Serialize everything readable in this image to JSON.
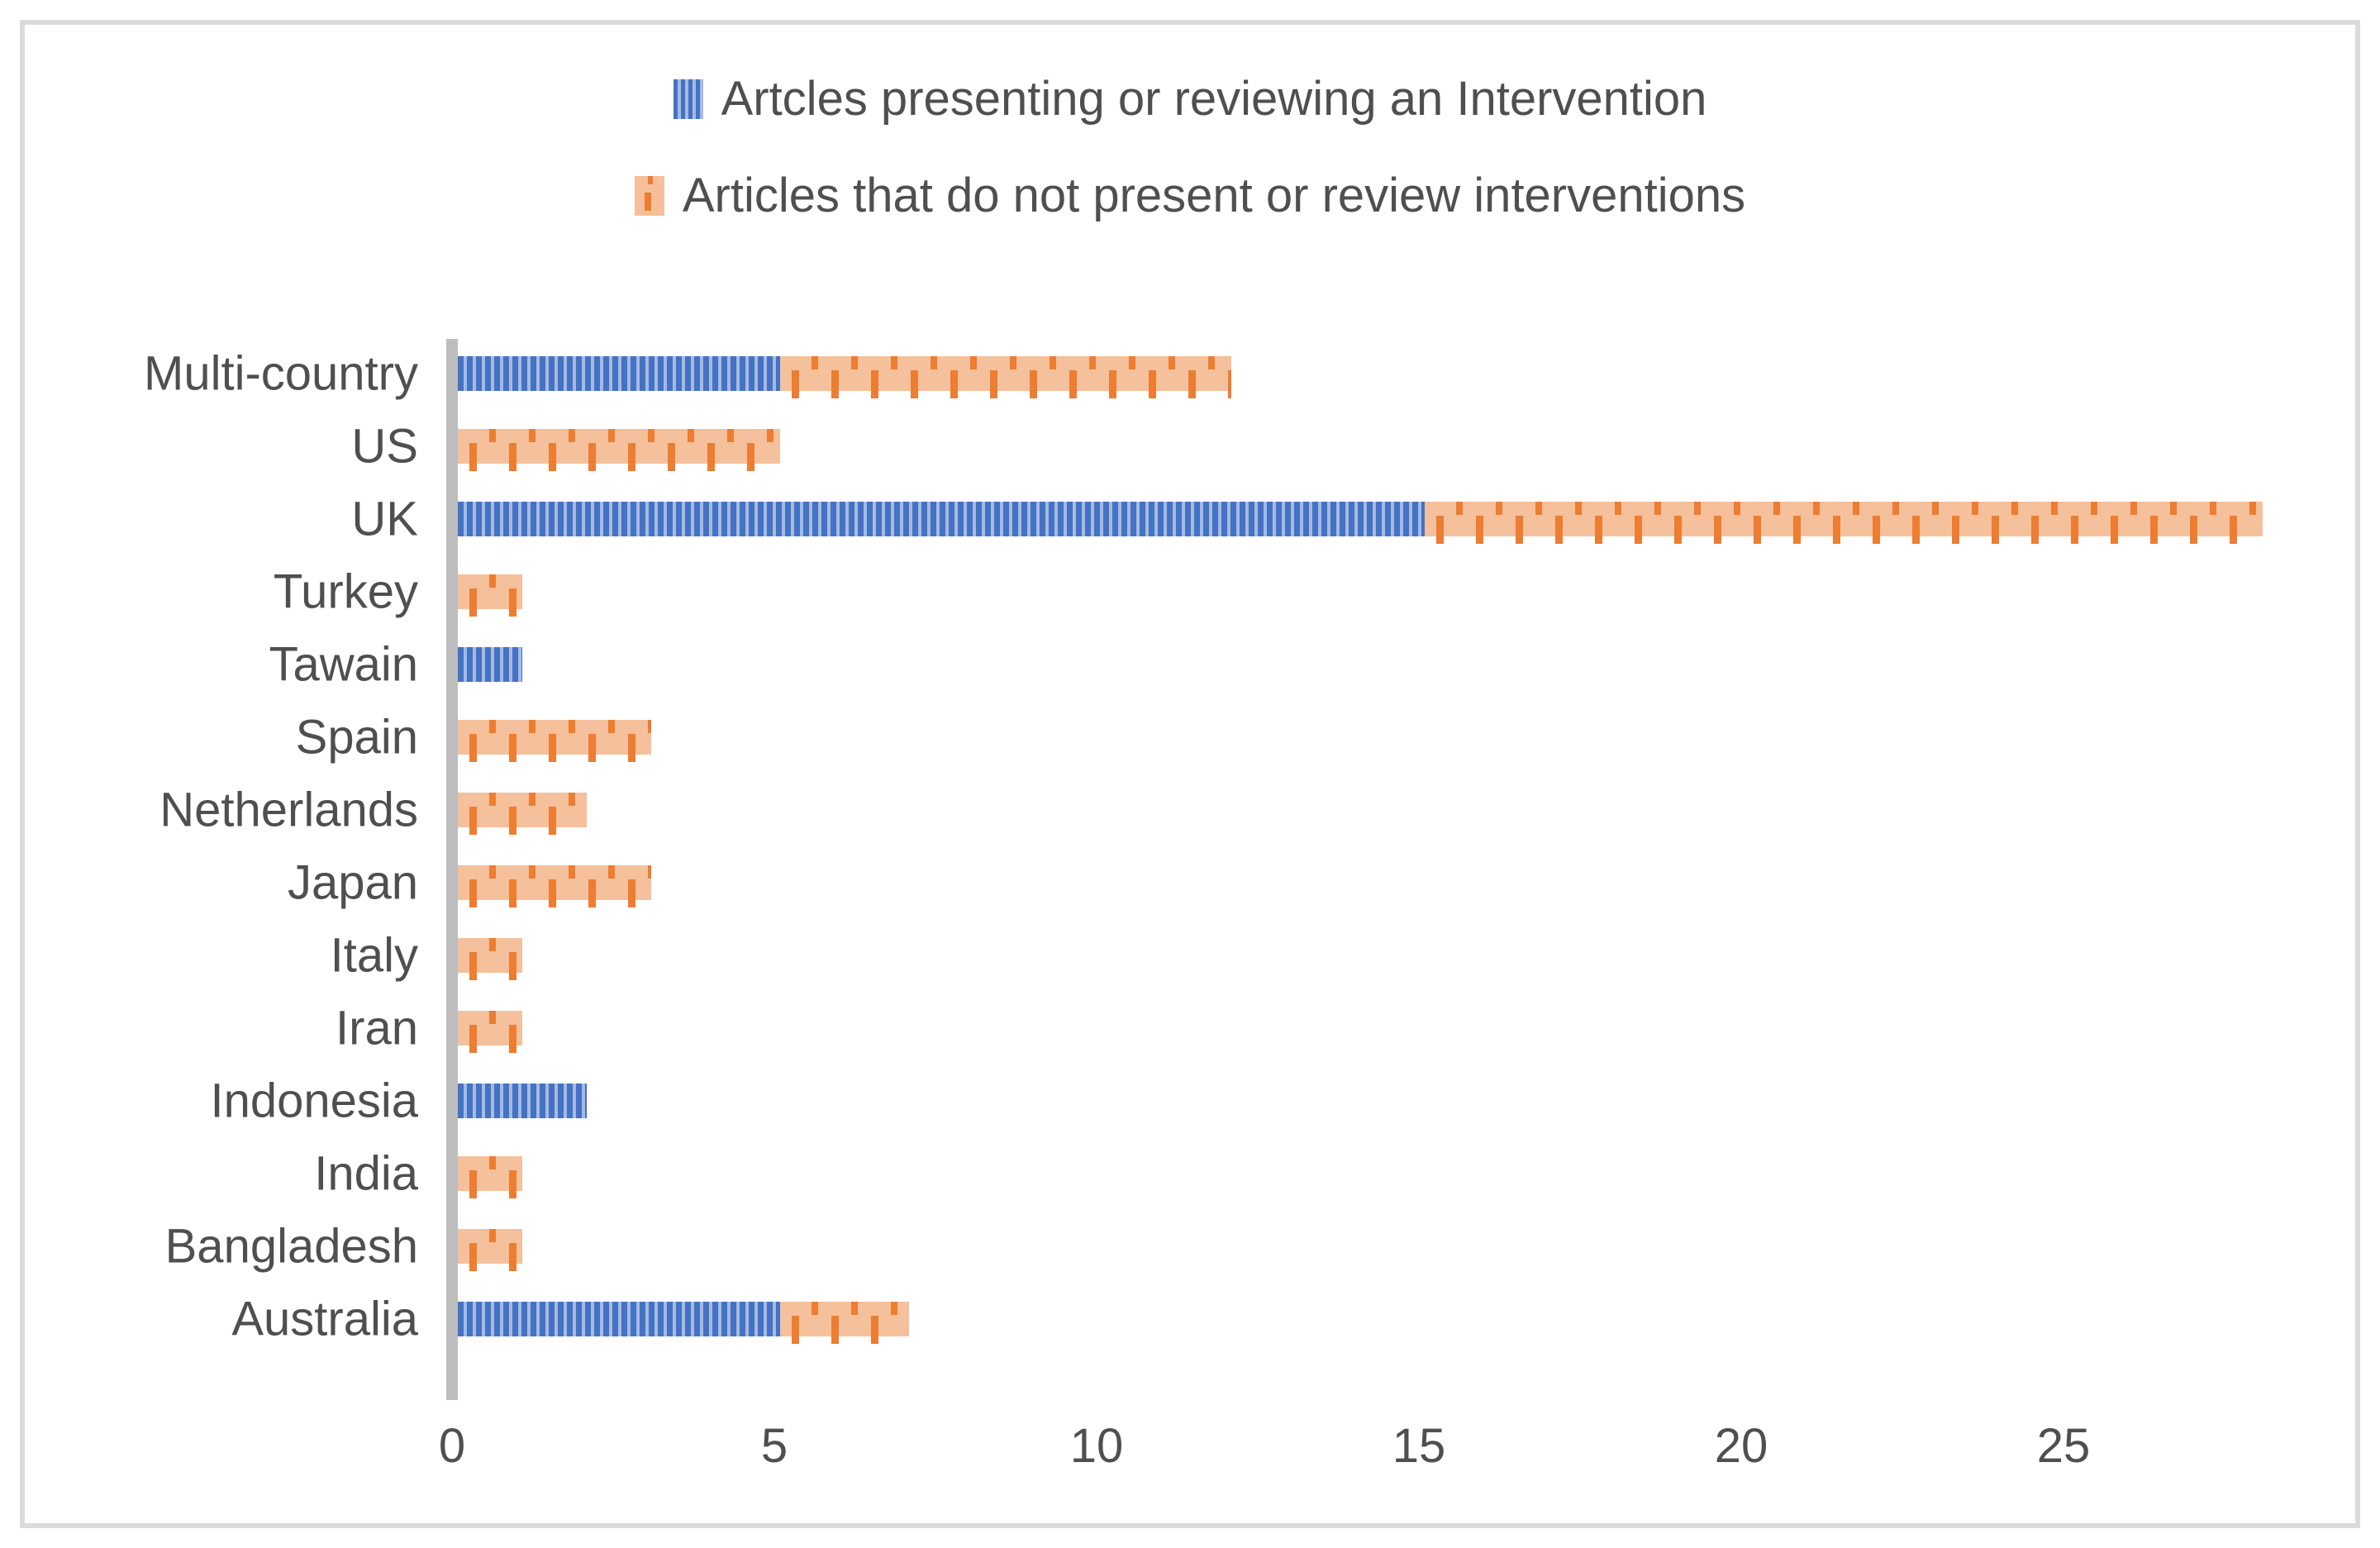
{
  "figure": {
    "background": "#FFFFFF",
    "border_color": "#DBDBDB"
  },
  "chart_data": {
    "type": "bar",
    "orientation": "horizontal",
    "stacked": true,
    "title": "",
    "xlabel": "",
    "ylabel": "",
    "grid": false,
    "legend_position": "top-center",
    "categories": [
      "Multi-country",
      "US",
      "UK",
      "Turkey",
      "Tawain",
      "Spain",
      "Netherlands",
      "Japan",
      "Italy",
      "Iran",
      "Indonesia",
      "India",
      "Bangladesh",
      "Australia"
    ],
    "series": [
      {
        "name": "Artcles presenting or reviewing an Intervention",
        "color": "#4472C4",
        "pattern": "light-vertical-stripes",
        "values": [
          5,
          0,
          15,
          0,
          1,
          0,
          0,
          0,
          0,
          0,
          2,
          0,
          0,
          5
        ]
      },
      {
        "name": "Articles that do not present or review interventions",
        "color": "#ED7D31",
        "pattern": "dashed-vertical",
        "values": [
          7,
          5,
          13,
          1,
          0,
          3,
          2,
          3,
          1,
          1,
          0,
          1,
          1,
          2
        ]
      }
    ],
    "totals": [
      12,
      5,
      28,
      1,
      1,
      3,
      2,
      3,
      1,
      1,
      2,
      1,
      1,
      7
    ],
    "x_ticks": [
      0,
      5,
      10,
      15,
      20,
      25
    ],
    "xlim": [
      0,
      28.5
    ],
    "axis_line_color": "#BDBDBD",
    "text_color": "#4F4F4F"
  }
}
